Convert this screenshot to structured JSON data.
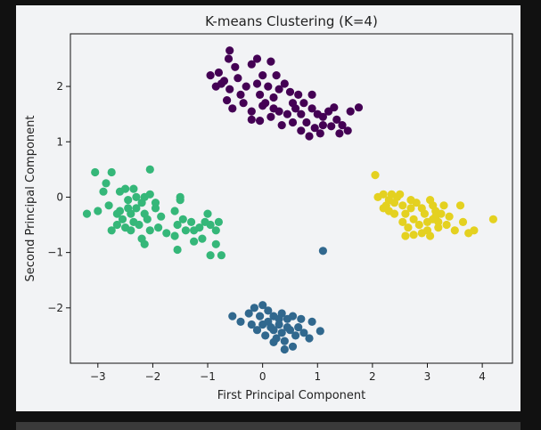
{
  "chart_data": {
    "type": "scatter",
    "title": "K-means Clustering (K=4)",
    "xlabel": "First Principal Component",
    "ylabel": "Second Principal Component",
    "xlim": [
      -3.5,
      4.55
    ],
    "ylim": [
      -3.0,
      2.95
    ],
    "xticks": [
      -3,
      -2,
      -1,
      0,
      1,
      2,
      3,
      4
    ],
    "yticks": [
      -2,
      -1,
      0,
      1,
      2
    ],
    "xtick_labels": [
      "−3",
      "−2",
      "−1",
      "0",
      "1",
      "2",
      "3",
      "4"
    ],
    "ytick_labels": [
      "−2",
      "−1",
      "0",
      "1",
      "2"
    ],
    "grid": false,
    "series": [
      {
        "cluster": 0,
        "color": "#440154",
        "points": [
          [
            -0.6,
            2.65
          ],
          [
            -0.62,
            2.5
          ],
          [
            -0.5,
            2.35
          ],
          [
            -0.95,
            2.2
          ],
          [
            -0.8,
            2.25
          ],
          [
            -0.7,
            2.1
          ],
          [
            -0.85,
            2.0
          ],
          [
            -0.6,
            1.95
          ],
          [
            -0.45,
            2.15
          ],
          [
            -0.3,
            2.0
          ],
          [
            -0.2,
            2.4
          ],
          [
            -0.1,
            2.5
          ],
          [
            0.15,
            2.45
          ],
          [
            0.0,
            2.2
          ],
          [
            0.1,
            2.0
          ],
          [
            -0.05,
            1.85
          ],
          [
            -0.35,
            1.7
          ],
          [
            -0.55,
            1.6
          ],
          [
            -0.65,
            1.75
          ],
          [
            -0.2,
            1.55
          ],
          [
            0.0,
            1.65
          ],
          [
            0.2,
            1.8
          ],
          [
            0.3,
            1.95
          ],
          [
            0.4,
            2.05
          ],
          [
            0.5,
            1.9
          ],
          [
            0.65,
            1.85
          ],
          [
            0.75,
            1.7
          ],
          [
            0.9,
            1.6
          ],
          [
            1.0,
            1.5
          ],
          [
            1.1,
            1.45
          ],
          [
            1.2,
            1.55
          ],
          [
            1.35,
            1.4
          ],
          [
            1.45,
            1.3
          ],
          [
            1.6,
            1.55
          ],
          [
            1.75,
            1.62
          ],
          [
            1.55,
            1.2
          ],
          [
            1.4,
            1.15
          ],
          [
            1.25,
            1.28
          ],
          [
            1.1,
            1.3
          ],
          [
            0.95,
            1.25
          ],
          [
            0.85,
            1.1
          ],
          [
            0.7,
            1.2
          ],
          [
            0.55,
            1.35
          ],
          [
            0.45,
            1.5
          ],
          [
            0.3,
            1.55
          ],
          [
            0.15,
            1.45
          ],
          [
            -0.05,
            1.38
          ],
          [
            -0.2,
            1.4
          ],
          [
            0.05,
            1.7
          ],
          [
            0.6,
            1.6
          ],
          [
            0.8,
            1.35
          ],
          [
            1.05,
            1.15
          ],
          [
            0.35,
            1.3
          ],
          [
            -0.4,
            1.85
          ],
          [
            0.25,
            2.2
          ],
          [
            0.55,
            1.7
          ],
          [
            0.7,
            1.5
          ],
          [
            -0.75,
            2.05
          ],
          [
            1.3,
            1.62
          ],
          [
            0.9,
            1.85
          ],
          [
            0.2,
            1.6
          ],
          [
            -0.1,
            2.05
          ]
        ]
      },
      {
        "cluster": 1,
        "color": "#31688e",
        "points": [
          [
            -0.55,
            -2.15
          ],
          [
            -0.4,
            -2.25
          ],
          [
            -0.25,
            -2.1
          ],
          [
            -0.15,
            -2.0
          ],
          [
            0.0,
            -1.95
          ],
          [
            0.1,
            -2.05
          ],
          [
            0.2,
            -2.15
          ],
          [
            0.35,
            -2.1
          ],
          [
            0.45,
            -2.2
          ],
          [
            0.55,
            -2.15
          ],
          [
            0.7,
            -2.2
          ],
          [
            0.9,
            -2.25
          ],
          [
            0.3,
            -2.3
          ],
          [
            0.2,
            -2.4
          ],
          [
            0.35,
            -2.45
          ],
          [
            0.5,
            -2.4
          ],
          [
            0.6,
            -2.5
          ],
          [
            0.4,
            -2.6
          ],
          [
            0.25,
            -2.55
          ],
          [
            0.15,
            -2.35
          ],
          [
            0.0,
            -2.3
          ],
          [
            -0.1,
            -2.4
          ],
          [
            -0.2,
            -2.3
          ],
          [
            0.4,
            -2.75
          ],
          [
            0.55,
            -2.7
          ],
          [
            0.75,
            -2.45
          ],
          [
            1.05,
            -2.42
          ],
          [
            0.85,
            -2.55
          ],
          [
            0.1,
            -2.25
          ],
          [
            0.05,
            -2.5
          ],
          [
            0.3,
            -2.2
          ],
          [
            0.65,
            -2.35
          ],
          [
            -0.05,
            -2.15
          ],
          [
            0.45,
            -2.35
          ],
          [
            0.2,
            -2.62
          ],
          [
            1.1,
            -0.97
          ]
        ]
      },
      {
        "cluster": 2,
        "color": "#35b779",
        "points": [
          [
            -3.2,
            -0.3
          ],
          [
            -3.05,
            0.45
          ],
          [
            -2.85,
            0.25
          ],
          [
            -2.9,
            0.1
          ],
          [
            -2.75,
            0.45
          ],
          [
            -2.8,
            -0.15
          ],
          [
            -3.0,
            -0.25
          ],
          [
            -2.65,
            -0.3
          ],
          [
            -2.6,
            0.1
          ],
          [
            -2.5,
            0.15
          ],
          [
            -2.45,
            -0.05
          ],
          [
            -2.4,
            -0.3
          ],
          [
            -2.3,
            -0.2
          ],
          [
            -2.2,
            -0.1
          ],
          [
            -2.15,
            0.0
          ],
          [
            -2.05,
            0.05
          ],
          [
            -1.95,
            -0.2
          ],
          [
            -1.85,
            -0.35
          ],
          [
            -2.1,
            -0.4
          ],
          [
            -2.25,
            -0.5
          ],
          [
            -2.35,
            -0.45
          ],
          [
            -2.5,
            -0.55
          ],
          [
            -2.75,
            -0.6
          ],
          [
            -2.65,
            -0.5
          ],
          [
            -2.55,
            -0.4
          ],
          [
            -2.4,
            -0.6
          ],
          [
            -2.2,
            -0.75
          ],
          [
            -2.15,
            -0.85
          ],
          [
            -1.9,
            -0.55
          ],
          [
            -1.75,
            -0.65
          ],
          [
            -1.6,
            -0.7
          ],
          [
            -1.55,
            -0.5
          ],
          [
            -1.45,
            -0.4
          ],
          [
            -1.3,
            -0.45
          ],
          [
            -1.25,
            -0.6
          ],
          [
            -1.15,
            -0.55
          ],
          [
            -1.05,
            -0.45
          ],
          [
            -0.95,
            -0.5
          ],
          [
            -1.0,
            -0.3
          ],
          [
            -0.8,
            -0.45
          ],
          [
            -0.85,
            -0.6
          ],
          [
            -1.1,
            -0.75
          ],
          [
            -1.25,
            -0.8
          ],
          [
            -0.85,
            -0.85
          ],
          [
            -0.75,
            -1.05
          ],
          [
            -0.95,
            -1.05
          ],
          [
            -1.55,
            -0.95
          ],
          [
            -1.5,
            -0.05
          ],
          [
            -1.6,
            -0.25
          ],
          [
            -1.5,
            0.0
          ],
          [
            -2.05,
            0.5
          ],
          [
            -2.35,
            0.15
          ],
          [
            -2.15,
            -0.3
          ],
          [
            -2.6,
            -0.25
          ],
          [
            -2.3,
            0.0
          ],
          [
            -1.95,
            -0.1
          ],
          [
            -2.45,
            -0.2
          ],
          [
            -2.05,
            -0.6
          ],
          [
            -1.4,
            -0.6
          ]
        ]
      },
      {
        "cluster": 3,
        "color": "#e4d120",
        "points": [
          [
            2.05,
            0.4
          ],
          [
            2.1,
            0.0
          ],
          [
            2.2,
            0.05
          ],
          [
            2.3,
            -0.05
          ],
          [
            2.25,
            -0.15
          ],
          [
            2.4,
            -0.1
          ],
          [
            2.45,
            0.0
          ],
          [
            2.55,
            -0.15
          ],
          [
            2.6,
            -0.3
          ],
          [
            2.7,
            -0.2
          ],
          [
            2.8,
            -0.1
          ],
          [
            2.9,
            -0.2
          ],
          [
            3.05,
            -0.05
          ],
          [
            3.15,
            -0.25
          ],
          [
            3.25,
            -0.3
          ],
          [
            3.3,
            -0.15
          ],
          [
            3.1,
            -0.4
          ],
          [
            3.0,
            -0.45
          ],
          [
            2.85,
            -0.5
          ],
          [
            2.75,
            -0.4
          ],
          [
            2.65,
            -0.55
          ],
          [
            2.55,
            -0.45
          ],
          [
            2.6,
            -0.7
          ],
          [
            2.75,
            -0.68
          ],
          [
            2.9,
            -0.65
          ],
          [
            3.05,
            -0.7
          ],
          [
            3.2,
            -0.55
          ],
          [
            3.35,
            -0.5
          ],
          [
            3.5,
            -0.6
          ],
          [
            3.65,
            -0.45
          ],
          [
            3.6,
            -0.15
          ],
          [
            3.4,
            -0.35
          ],
          [
            3.75,
            -0.65
          ],
          [
            3.85,
            -0.6
          ],
          [
            4.2,
            -0.4
          ],
          [
            2.4,
            -0.3
          ],
          [
            2.3,
            -0.25
          ],
          [
            2.95,
            -0.3
          ],
          [
            3.1,
            -0.15
          ],
          [
            2.2,
            -0.2
          ],
          [
            2.5,
            0.05
          ],
          [
            2.7,
            -0.05
          ],
          [
            3.2,
            -0.45
          ],
          [
            2.35,
            0.05
          ],
          [
            3.0,
            -0.6
          ],
          [
            3.15,
            -0.35
          ]
        ]
      }
    ]
  }
}
